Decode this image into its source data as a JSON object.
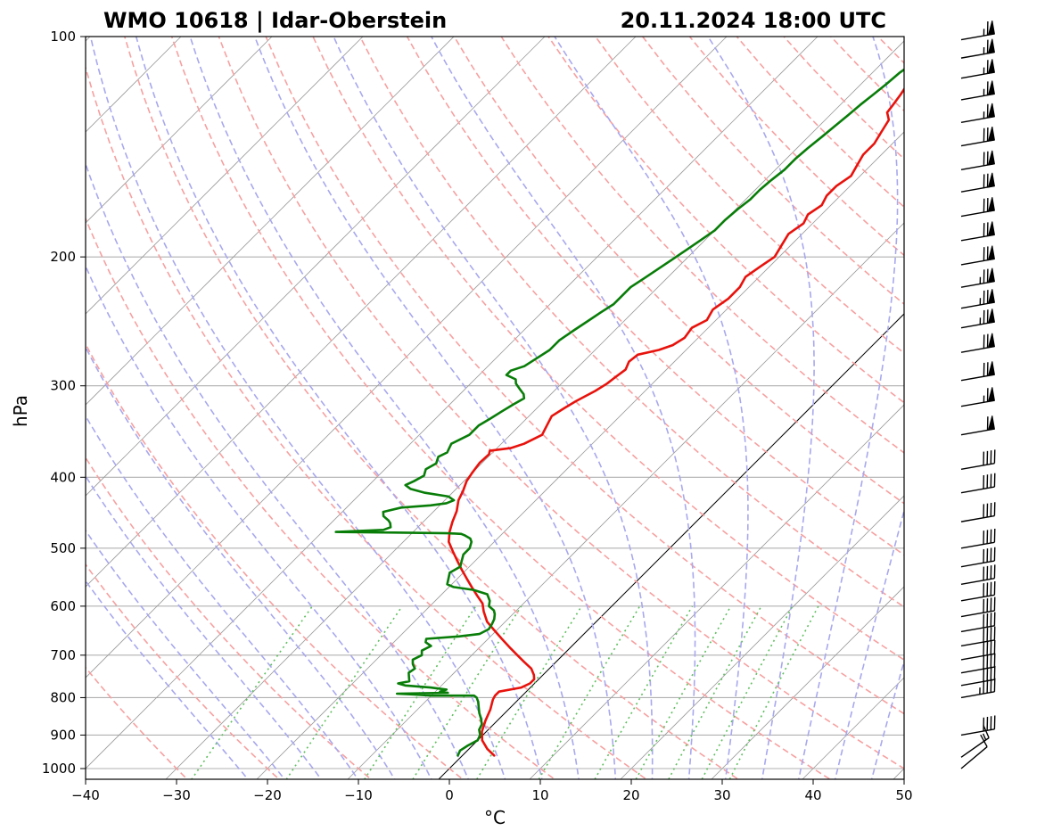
{
  "title_left": "WMO 10618 | Idar-Oberstein",
  "title_right": "20.11.2024 18:00 UTC",
  "chart_data": {
    "type": "line",
    "subtype": "skew-T log-P diagram",
    "xlabel": "°C",
    "ylabel": "hPa",
    "xlim": [
      -40,
      50
    ],
    "ylim": [
      1050,
      100
    ],
    "y_scale": "log",
    "x_ticks": [
      -40,
      -30,
      -20,
      -10,
      0,
      10,
      20,
      30,
      40,
      50
    ],
    "x_tick_labels": [
      "−40",
      "−30",
      "−20",
      "−10",
      "0",
      "10",
      "20",
      "30",
      "40",
      "50"
    ],
    "y_ticks": [
      1000,
      900,
      800,
      700,
      600,
      500,
      400,
      300,
      200,
      100
    ],
    "y_tick_labels": [
      "1000",
      "900",
      "800",
      "700",
      "600",
      "500",
      "400",
      "300",
      "200",
      "100"
    ],
    "grid": true,
    "colors": {
      "temperature": "#e8120c",
      "dewpoint": "#087d08",
      "isotherm": "#9a9a9a",
      "dry_adiabat": "#f7a0a0",
      "moist_adiabat": "#a8a8ee",
      "mixing_ratio": "#5fbf5f",
      "zero_isotherm": "#000000"
    },
    "series": [
      {
        "key": "temperature",
        "points": [
          [
            3.5,
            960
          ],
          [
            2.0,
            940
          ],
          [
            0.5,
            915
          ],
          [
            -0.5,
            890
          ],
          [
            -1.3,
            860
          ],
          [
            -2.0,
            830
          ],
          [
            -2.8,
            805
          ],
          [
            -3.0,
            795
          ],
          [
            -3.0,
            785
          ],
          [
            -1.0,
            775
          ],
          [
            -0.5,
            765
          ],
          [
            -0.5,
            755
          ],
          [
            -1.0,
            745
          ],
          [
            -2.0,
            730
          ],
          [
            -3.5,
            715
          ],
          [
            -5.0,
            700
          ],
          [
            -6.5,
            685
          ],
          [
            -8.5,
            665
          ],
          [
            -10.5,
            645
          ],
          [
            -12.0,
            630
          ],
          [
            -13.5,
            610
          ],
          [
            -14.5,
            595
          ],
          [
            -16.0,
            580
          ],
          [
            -17.5,
            565
          ],
          [
            -19.0,
            550
          ],
          [
            -20.5,
            535
          ],
          [
            -22.0,
            520
          ],
          [
            -23.5,
            505
          ],
          [
            -25.0,
            490
          ],
          [
            -26.0,
            475
          ],
          [
            -26.8,
            460
          ],
          [
            -27.5,
            445
          ],
          [
            -28.5,
            430
          ],
          [
            -29.0,
            418
          ],
          [
            -29.7,
            405
          ],
          [
            -30.0,
            395
          ],
          [
            -30.3,
            382
          ],
          [
            -30.2,
            372
          ],
          [
            -30.5,
            368
          ],
          [
            -28.5,
            365
          ],
          [
            -27.5,
            360
          ],
          [
            -27.0,
            355
          ],
          [
            -26.5,
            350
          ],
          [
            -27.0,
            340
          ],
          [
            -27.5,
            330
          ],
          [
            -27.0,
            322
          ],
          [
            -26.5,
            315
          ],
          [
            -26.0,
            310
          ],
          [
            -25.5,
            305
          ],
          [
            -25.0,
            298
          ],
          [
            -24.8,
            292
          ],
          [
            -24.5,
            285
          ],
          [
            -25.0,
            278
          ],
          [
            -24.8,
            272
          ],
          [
            -23.0,
            268
          ],
          [
            -22.0,
            264
          ],
          [
            -21.5,
            258
          ],
          [
            -21.8,
            250
          ],
          [
            -21.0,
            244
          ],
          [
            -21.5,
            236
          ],
          [
            -21.0,
            228
          ],
          [
            -21.0,
            220
          ],
          [
            -21.5,
            213
          ],
          [
            -21.0,
            206
          ],
          [
            -20.5,
            200
          ],
          [
            -21.0,
            193
          ],
          [
            -21.5,
            186
          ],
          [
            -21.0,
            180
          ],
          [
            -21.5,
            175
          ],
          [
            -21.0,
            170
          ],
          [
            -21.5,
            165
          ],
          [
            -21.5,
            160
          ],
          [
            -21.0,
            155
          ],
          [
            -21.5,
            150
          ],
          [
            -22.0,
            145
          ],
          [
            -22.0,
            140
          ],
          [
            -22.5,
            135
          ],
          [
            -23.0,
            130
          ],
          [
            -24.0,
            127
          ],
          [
            -24.2,
            124
          ],
          [
            -24.5,
            120
          ],
          [
            -25.0,
            115
          ],
          [
            -26.0,
            112
          ],
          [
            -25.8,
            109
          ],
          [
            -26.2,
            106
          ],
          [
            -26.8,
            103
          ],
          [
            -27.2,
            101
          ],
          [
            -27.6,
            100
          ]
        ]
      },
      {
        "key": "dewpoint",
        "points": [
          [
            -0.5,
            960
          ],
          [
            -0.8,
            945
          ],
          [
            -0.5,
            930
          ],
          [
            0.0,
            915
          ],
          [
            -0.3,
            900
          ],
          [
            -1.0,
            885
          ],
          [
            -1.3,
            870
          ],
          [
            -2.0,
            855
          ],
          [
            -2.8,
            840
          ],
          [
            -3.5,
            825
          ],
          [
            -4.2,
            810
          ],
          [
            -4.8,
            800
          ],
          [
            -5.3,
            795
          ],
          [
            -10.0,
            795
          ],
          [
            -12.0,
            792
          ],
          [
            -14.0,
            790
          ],
          [
            -8.5,
            788
          ],
          [
            -9.5,
            785
          ],
          [
            -9.0,
            780
          ],
          [
            -11.0,
            775
          ],
          [
            -14.0,
            770
          ],
          [
            -15.0,
            765
          ],
          [
            -14.0,
            760
          ],
          [
            -14.5,
            750
          ],
          [
            -15.0,
            740
          ],
          [
            -14.8,
            730
          ],
          [
            -15.5,
            720
          ],
          [
            -16.0,
            710
          ],
          [
            -15.5,
            700
          ],
          [
            -16.0,
            690
          ],
          [
            -15.5,
            680
          ],
          [
            -16.5,
            672
          ],
          [
            -16.8,
            665
          ],
          [
            -13.5,
            660
          ],
          [
            -11.5,
            655
          ],
          [
            -11.0,
            645
          ],
          [
            -11.2,
            635
          ],
          [
            -11.5,
            625
          ],
          [
            -12.0,
            615
          ],
          [
            -12.5,
            608
          ],
          [
            -13.5,
            600
          ],
          [
            -14.0,
            590
          ],
          [
            -15.0,
            578
          ],
          [
            -17.0,
            570
          ],
          [
            -19.5,
            565
          ],
          [
            -20.5,
            560
          ],
          [
            -21.0,
            550
          ],
          [
            -21.5,
            540
          ],
          [
            -21.0,
            530
          ],
          [
            -21.5,
            520
          ],
          [
            -22.0,
            510
          ],
          [
            -22.0,
            500
          ],
          [
            -22.5,
            490
          ],
          [
            -23.0,
            485
          ],
          [
            -24.0,
            480
          ],
          [
            -24.5,
            478
          ],
          [
            -26.0,
            477
          ],
          [
            -32.0,
            476
          ],
          [
            -38.5,
            475
          ],
          [
            -33.5,
            472
          ],
          [
            -33.0,
            468
          ],
          [
            -33.5,
            462
          ],
          [
            -34.0,
            458
          ],
          [
            -35.0,
            452
          ],
          [
            -35.5,
            446
          ],
          [
            -34.0,
            440
          ],
          [
            -31.0,
            437
          ],
          [
            -29.5,
            434
          ],
          [
            -29.0,
            430
          ],
          [
            -30.0,
            425
          ],
          [
            -33.0,
            420
          ],
          [
            -35.0,
            415
          ],
          [
            -36.0,
            410
          ],
          [
            -35.5,
            405
          ],
          [
            -35.0,
            398
          ],
          [
            -35.5,
            390
          ],
          [
            -35.0,
            383
          ],
          [
            -35.5,
            375
          ],
          [
            -35.0,
            370
          ],
          [
            -35.5,
            360
          ],
          [
            -34.5,
            350
          ],
          [
            -34.5,
            340
          ],
          [
            -34.0,
            333
          ],
          [
            -33.5,
            325
          ],
          [
            -33.0,
            318
          ],
          [
            -32.5,
            312
          ],
          [
            -33.0,
            308
          ],
          [
            -34.0,
            303
          ],
          [
            -35.0,
            298
          ],
          [
            -35.5,
            294
          ],
          [
            -37.0,
            290
          ],
          [
            -37.0,
            286
          ],
          [
            -36.0,
            282
          ],
          [
            -35.5,
            275
          ],
          [
            -35.0,
            268
          ],
          [
            -35.0,
            260
          ],
          [
            -34.5,
            252
          ],
          [
            -34.0,
            245
          ],
          [
            -33.5,
            238
          ],
          [
            -33.0,
            232
          ],
          [
            -33.0,
            226
          ],
          [
            -33.0,
            220
          ],
          [
            -32.5,
            214
          ],
          [
            -32.0,
            208
          ],
          [
            -31.5,
            202
          ],
          [
            -31.0,
            196
          ],
          [
            -30.5,
            190
          ],
          [
            -30.0,
            184
          ],
          [
            -30.0,
            178
          ],
          [
            -29.8,
            172
          ],
          [
            -29.5,
            167
          ],
          [
            -29.5,
            162
          ],
          [
            -29.3,
            157
          ],
          [
            -29.0,
            152
          ],
          [
            -29.0,
            147
          ],
          [
            -28.8,
            142
          ],
          [
            -28.5,
            137
          ],
          [
            -28.3,
            133
          ],
          [
            -28.0,
            128
          ],
          [
            -27.8,
            124
          ],
          [
            -27.5,
            120
          ],
          [
            -27.2,
            116
          ],
          [
            -27.0,
            112
          ],
          [
            -26.6,
            109
          ],
          [
            -26.3,
            106
          ],
          [
            -26.0,
            103
          ],
          [
            -25.7,
            101
          ],
          [
            -25.5,
            100
          ]
        ]
      }
    ],
    "wind_barbs": [
      {
        "p": 1000,
        "speed_kt": 10,
        "dir": 230
      },
      {
        "p": 965,
        "speed_kt": 15,
        "dir": 235
      },
      {
        "p": 900,
        "speed_kt": 40,
        "dir": 260
      },
      {
        "p": 800,
        "speed_kt": 45,
        "dir": 260
      },
      {
        "p": 770,
        "speed_kt": 40,
        "dir": 260
      },
      {
        "p": 740,
        "speed_kt": 40,
        "dir": 260
      },
      {
        "p": 710,
        "speed_kt": 40,
        "dir": 260
      },
      {
        "p": 680,
        "speed_kt": 40,
        "dir": 260
      },
      {
        "p": 650,
        "speed_kt": 40,
        "dir": 260
      },
      {
        "p": 620,
        "speed_kt": 40,
        "dir": 260
      },
      {
        "p": 590,
        "speed_kt": 40,
        "dir": 260
      },
      {
        "p": 560,
        "speed_kt": 40,
        "dir": 260
      },
      {
        "p": 530,
        "speed_kt": 40,
        "dir": 260
      },
      {
        "p": 500,
        "speed_kt": 40,
        "dir": 260
      },
      {
        "p": 460,
        "speed_kt": 40,
        "dir": 260
      },
      {
        "p": 420,
        "speed_kt": 40,
        "dir": 260
      },
      {
        "p": 390,
        "speed_kt": 40,
        "dir": 260
      },
      {
        "p": 350,
        "speed_kt": 60,
        "dir": 260
      },
      {
        "p": 320,
        "speed_kt": 65,
        "dir": 260
      },
      {
        "p": 295,
        "speed_kt": 70,
        "dir": 260
      },
      {
        "p": 270,
        "speed_kt": 70,
        "dir": 260
      },
      {
        "p": 250,
        "speed_kt": 75,
        "dir": 260
      },
      {
        "p": 235,
        "speed_kt": 75,
        "dir": 260
      },
      {
        "p": 220,
        "speed_kt": 75,
        "dir": 260
      },
      {
        "p": 205,
        "speed_kt": 70,
        "dir": 260
      },
      {
        "p": 190,
        "speed_kt": 70,
        "dir": 260
      },
      {
        "p": 176,
        "speed_kt": 70,
        "dir": 260
      },
      {
        "p": 163,
        "speed_kt": 70,
        "dir": 260
      },
      {
        "p": 152,
        "speed_kt": 70,
        "dir": 260
      },
      {
        "p": 141,
        "speed_kt": 70,
        "dir": 260
      },
      {
        "p": 131,
        "speed_kt": 65,
        "dir": 260
      },
      {
        "p": 122,
        "speed_kt": 65,
        "dir": 260
      },
      {
        "p": 114,
        "speed_kt": 65,
        "dir": 260
      },
      {
        "p": 107,
        "speed_kt": 65,
        "dir": 260
      },
      {
        "p": 101,
        "speed_kt": 65,
        "dir": 260
      }
    ]
  }
}
